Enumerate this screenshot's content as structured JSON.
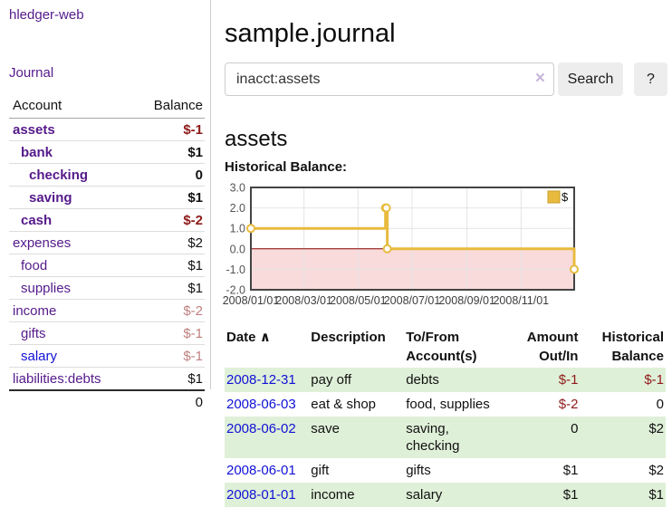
{
  "sidebar": {
    "brand": "hledger-web",
    "journal_link": "Journal",
    "accounts": {
      "col_account": "Account",
      "col_balance": "Balance",
      "rows": [
        {
          "name": "assets",
          "depth": 1,
          "bold": true,
          "link": "purple",
          "balance": "$-1",
          "neg": "dark"
        },
        {
          "name": "bank",
          "depth": 2,
          "bold": true,
          "link": "purple",
          "balance": "$1",
          "neg": "none"
        },
        {
          "name": "checking",
          "depth": 3,
          "bold": true,
          "link": "purple",
          "balance": "0",
          "neg": "none"
        },
        {
          "name": "saving",
          "depth": 3,
          "bold": true,
          "link": "purple",
          "balance": "$1",
          "neg": "none"
        },
        {
          "name": "cash",
          "depth": 2,
          "bold": true,
          "link": "purple",
          "balance": "$-2",
          "neg": "dark"
        },
        {
          "name": "expenses",
          "depth": 1,
          "bold": false,
          "link": "purple",
          "balance": "$2",
          "neg": "none"
        },
        {
          "name": "food",
          "depth": 2,
          "bold": false,
          "link": "purple",
          "balance": "$1",
          "neg": "none"
        },
        {
          "name": "supplies",
          "depth": 2,
          "bold": false,
          "link": "purple",
          "balance": "$1",
          "neg": "none"
        },
        {
          "name": "income",
          "depth": 1,
          "bold": false,
          "link": "purple",
          "balance": "$-2",
          "neg": "light"
        },
        {
          "name": "gifts",
          "depth": 2,
          "bold": false,
          "link": "purple",
          "balance": "$-1",
          "neg": "light"
        },
        {
          "name": "salary",
          "depth": 2,
          "bold": false,
          "link": "blue",
          "balance": "$-1",
          "neg": "light"
        },
        {
          "name": "liabilities:debts",
          "depth": 1,
          "bold": false,
          "link": "purple",
          "balance": "$1",
          "neg": "none"
        }
      ],
      "total": "0"
    }
  },
  "header": {
    "title": "sample.journal"
  },
  "search": {
    "value": "inacct:assets",
    "clear_icon": "×",
    "button_label": "Search",
    "help_label": "?"
  },
  "account_page": {
    "title": "assets",
    "chart_label": "Historical Balance:"
  },
  "chart_data": {
    "type": "line",
    "step": true,
    "title": "Historical Balance",
    "series": [
      {
        "name": "$",
        "color": "#e8bb3f",
        "points": [
          [
            "2008-01-01",
            1
          ],
          [
            "2008-06-01",
            2
          ],
          [
            "2008-06-02",
            2
          ],
          [
            "2008-06-03",
            0
          ],
          [
            "2008-12-31",
            -1
          ]
        ]
      }
    ],
    "xlim": [
      "2008-01-01",
      "2008-12-31"
    ],
    "ylim": [
      -2,
      3
    ],
    "y_ticks": [
      3.0,
      2.0,
      1.0,
      0.0,
      -1.0,
      -2.0
    ],
    "x_ticks": [
      "2008/01/01",
      "2008/03/01",
      "2008/05/01",
      "2008/07/01",
      "2008/09/01",
      "2008/11/01"
    ],
    "legend": {
      "label": "$",
      "position": "top-right"
    },
    "grid": true,
    "negative_region_fill": "#f9dbdb",
    "zero_line_color": "#8b0000"
  },
  "register": {
    "headers": {
      "date": "Date",
      "sort_icon": "∧",
      "description": "Description",
      "accounts": "To/From Account(s)",
      "amount": "Amount Out/In",
      "balance": "Historical Balance"
    },
    "rows": [
      {
        "date": "2008-12-31",
        "description": "pay off",
        "accounts": "debts",
        "amount": "$-1",
        "amount_neg": true,
        "balance": "$-1",
        "balance_neg": true
      },
      {
        "date": "2008-06-03",
        "description": "eat & shop",
        "accounts": "food, supplies",
        "amount": "$-2",
        "amount_neg": true,
        "balance": "0",
        "balance_neg": false
      },
      {
        "date": "2008-06-02",
        "description": "save",
        "accounts": "saving, checking",
        "amount": "0",
        "amount_neg": false,
        "balance": "$2",
        "balance_neg": false
      },
      {
        "date": "2008-06-01",
        "description": "gift",
        "accounts": "gifts",
        "amount": "$1",
        "amount_neg": false,
        "balance": "$2",
        "balance_neg": false
      },
      {
        "date": "2008-01-01",
        "description": "income",
        "accounts": "salary",
        "amount": "$1",
        "amount_neg": false,
        "balance": "$1",
        "balance_neg": false
      }
    ]
  }
}
